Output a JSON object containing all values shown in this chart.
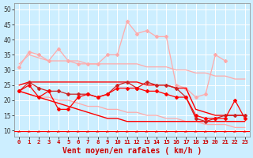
{
  "xlabel": "Vent moyen/en rafales ( km/h )",
  "x": [
    0,
    1,
    2,
    3,
    4,
    5,
    6,
    7,
    8,
    9,
    10,
    11,
    12,
    13,
    14,
    15,
    16,
    17,
    18,
    19,
    20,
    21,
    22,
    23
  ],
  "line_pink_marker": [
    31,
    36,
    35,
    33,
    37,
    33,
    32,
    32,
    32,
    35,
    35,
    46,
    42,
    43,
    41,
    41,
    25,
    24,
    21,
    22,
    35,
    33,
    null,
    null
  ],
  "line_pink_upper_trend": [
    32,
    35,
    34,
    33,
    33,
    33,
    33,
    32,
    32,
    32,
    32,
    32,
    32,
    31,
    31,
    31,
    30,
    30,
    29,
    29,
    28,
    28,
    27,
    27
  ],
  "line_pink_lower_trend": [
    23,
    22,
    21,
    21,
    20,
    20,
    19,
    18,
    18,
    17,
    17,
    16,
    16,
    15,
    15,
    14,
    14,
    13,
    13,
    12,
    12,
    12,
    11,
    11
  ],
  "line_darkred_marker": [
    23,
    26,
    24,
    23,
    23,
    22,
    22,
    22,
    21,
    22,
    25,
    26,
    24,
    26,
    25,
    25,
    24,
    21,
    14,
    13,
    14,
    15,
    15,
    15
  ],
  "line_red_marker": [
    23,
    25,
    21,
    23,
    17,
    17,
    21,
    22,
    21,
    22,
    24,
    24,
    24,
    23,
    23,
    22,
    21,
    21,
    15,
    14,
    14,
    14,
    20,
    14
  ],
  "line_red_trend_upper": [
    25,
    26,
    26,
    26,
    26,
    26,
    26,
    26,
    26,
    26,
    26,
    26,
    26,
    25,
    25,
    25,
    24,
    24,
    17,
    16,
    15,
    15,
    15,
    15
  ],
  "line_red_trend_lower": [
    23,
    22,
    21,
    20,
    19,
    18,
    17,
    16,
    15,
    14,
    14,
    13,
    13,
    13,
    13,
    13,
    13,
    13,
    13,
    13,
    13,
    13,
    13,
    13
  ],
  "bg_color": "#cceeff",
  "grid_color": "#ffffff",
  "color_pink": "#ffaaaa",
  "color_darkred": "#cc2222",
  "color_red": "#ff0000",
  "ylim_min": 8,
  "ylim_max": 52,
  "yticks": [
    10,
    15,
    20,
    25,
    30,
    35,
    40,
    45,
    50
  ]
}
